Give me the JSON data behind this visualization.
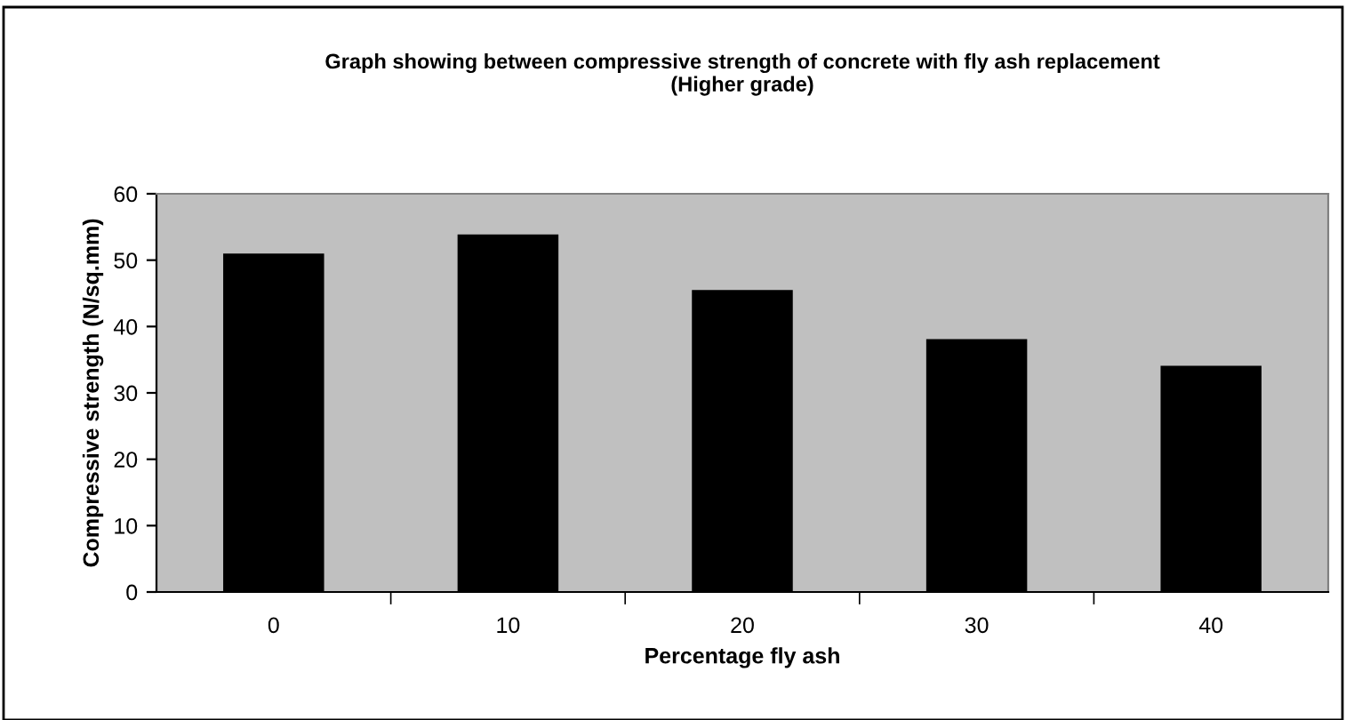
{
  "chart_data": {
    "type": "bar",
    "title": "Graph showing between compressive strength of concrete with fly ash replacement\n(Higher grade)",
    "xlabel": "Percentage fly ash",
    "ylabel": "Compressive strength (N/sq.mm)",
    "categories": [
      "0",
      "10",
      "20",
      "30",
      "40"
    ],
    "values": [
      50.8,
      53.7,
      45.3,
      37.9,
      33.9
    ],
    "color": "#000000",
    "ylim": [
      0,
      60
    ],
    "yticks": [
      0,
      10,
      20,
      30,
      40,
      50,
      60
    ],
    "grid": false
  }
}
